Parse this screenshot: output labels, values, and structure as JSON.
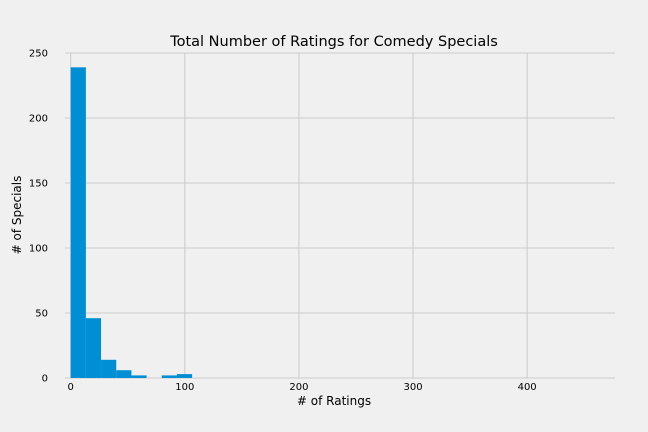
{
  "chart_data": {
    "type": "bar",
    "title": "Total Number of Ratings for Comedy Specials",
    "xlabel": "# of Ratings",
    "ylabel": "# of Specials",
    "xlim": [
      -5,
      477
    ],
    "ylim": [
      0,
      250
    ],
    "x_ticks": [
      0,
      100,
      200,
      300,
      400
    ],
    "y_ticks": [
      0,
      50,
      100,
      150,
      200,
      250
    ],
    "grid": true,
    "bin_width": 13.3,
    "bins": [
      {
        "start": 0,
        "count": 239
      },
      {
        "start": 13.3,
        "count": 46
      },
      {
        "start": 26.6,
        "count": 14
      },
      {
        "start": 39.9,
        "count": 6
      },
      {
        "start": 53.2,
        "count": 2
      },
      {
        "start": 66.5,
        "count": 0
      },
      {
        "start": 79.8,
        "count": 2
      },
      {
        "start": 93.1,
        "count": 3
      }
    ],
    "bar_color": "#008fd5",
    "grid_color": "#cbcbcb"
  }
}
